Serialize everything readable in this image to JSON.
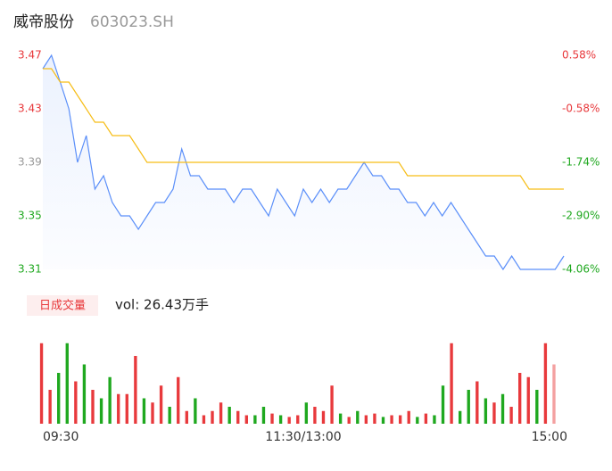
{
  "header": {
    "name": "威帝股份",
    "code": "603023.SH"
  },
  "chart_data": [
    {
      "type": "line",
      "xlim": [
        0,
        60
      ],
      "xticks": [
        {
          "value": 0,
          "label": "09:30"
        },
        {
          "value": 30,
          "label": "11:30/13:00"
        },
        {
          "value": 60,
          "label": "15:00"
        }
      ],
      "ylim": [
        3.31,
        3.47
      ],
      "yticks": [
        3.31,
        3.35,
        3.39,
        3.43,
        3.47
      ],
      "y2lim": [
        -4.06,
        0.58
      ],
      "y2ticks": [
        {
          "value": -4.06,
          "label": "-4.06%"
        },
        {
          "value": -2.9,
          "label": "-2.90%"
        },
        {
          "value": -1.74,
          "label": "-1.74%"
        },
        {
          "value": -0.58,
          "label": "-0.58%"
        },
        {
          "value": 0.58,
          "label": "0.58%"
        }
      ],
      "series": [
        {
          "color": "#5b8ff9",
          "values": [
            3.46,
            3.47,
            3.45,
            3.43,
            3.39,
            3.41,
            3.37,
            3.38,
            3.36,
            3.35,
            3.35,
            3.34,
            3.35,
            3.36,
            3.36,
            3.37,
            3.4,
            3.38,
            3.38,
            3.37,
            3.37,
            3.37,
            3.36,
            3.37,
            3.37,
            3.36,
            3.35,
            3.37,
            3.36,
            3.35,
            3.37,
            3.36,
            3.37,
            3.36,
            3.37,
            3.37,
            3.38,
            3.39,
            3.38,
            3.38,
            3.37,
            3.37,
            3.36,
            3.36,
            3.35,
            3.36,
            3.35,
            3.36,
            3.35,
            3.34,
            3.33,
            3.32,
            3.32,
            3.31,
            3.32,
            3.31,
            3.31,
            3.31,
            3.31,
            3.31,
            3.32
          ]
        },
        {
          "color": "#f6bd16",
          "values": [
            3.46,
            3.46,
            3.45,
            3.45,
            3.44,
            3.43,
            3.42,
            3.42,
            3.41,
            3.41,
            3.41,
            3.4,
            3.39,
            3.39,
            3.39,
            3.39,
            3.39,
            3.39,
            3.39,
            3.39,
            3.39,
            3.39,
            3.39,
            3.39,
            3.39,
            3.39,
            3.39,
            3.39,
            3.39,
            3.39,
            3.39,
            3.39,
            3.39,
            3.39,
            3.39,
            3.39,
            3.39,
            3.39,
            3.39,
            3.39,
            3.39,
            3.39,
            3.38,
            3.38,
            3.38,
            3.38,
            3.38,
            3.38,
            3.38,
            3.38,
            3.38,
            3.38,
            3.38,
            3.38,
            3.38,
            3.38,
            3.37,
            3.37,
            3.37,
            3.37,
            3.37
          ]
        }
      ]
    },
    {
      "type": "bar",
      "tag": "日成交量",
      "subtitle": "vol: 26.43万手",
      "ylim": [
        0,
        100
      ],
      "values": [
        95,
        40,
        60,
        95,
        50,
        70,
        40,
        30,
        55,
        35,
        35,
        80,
        30,
        25,
        45,
        20,
        55,
        15,
        30,
        10,
        15,
        25,
        20,
        15,
        10,
        10,
        20,
        12,
        10,
        8,
        10,
        25,
        20,
        15,
        45,
        12,
        8,
        15,
        10,
        12,
        8,
        10,
        10,
        15,
        8,
        12,
        10,
        45,
        95,
        15,
        40,
        50,
        30,
        25,
        35,
        20,
        60,
        55,
        40,
        95,
        70
      ],
      "colors": [
        "#e8393c",
        "#e8393c",
        "#1fa81f",
        "#1fa81f",
        "#e8393c",
        "#1fa81f",
        "#e8393c",
        "#1fa81f",
        "#1fa81f",
        "#e8393c",
        "#e8393c",
        "#e8393c",
        "#1fa81f",
        "#e8393c",
        "#e8393c",
        "#1fa81f",
        "#e8393c",
        "#e8393c",
        "#1fa81f",
        "#e8393c",
        "#e8393c",
        "#e8393c",
        "#1fa81f",
        "#e8393c",
        "#e8393c",
        "#1fa81f",
        "#1fa81f",
        "#e8393c",
        "#1fa81f",
        "#e8393c",
        "#e8393c",
        "#1fa81f",
        "#e8393c",
        "#e8393c",
        "#e8393c",
        "#1fa81f",
        "#e8393c",
        "#1fa81f",
        "#e8393c",
        "#e8393c",
        "#1fa81f",
        "#e8393c",
        "#e8393c",
        "#e8393c",
        "#1fa81f",
        "#e8393c",
        "#1fa81f",
        "#1fa81f",
        "#e8393c",
        "#1fa81f",
        "#1fa81f",
        "#e8393c",
        "#1fa81f",
        "#e8393c",
        "#1fa81f",
        "#e8393c",
        "#e8393c",
        "#e8393c",
        "#1fa81f",
        "#e8393c",
        "#f4a0a0"
      ]
    }
  ]
}
